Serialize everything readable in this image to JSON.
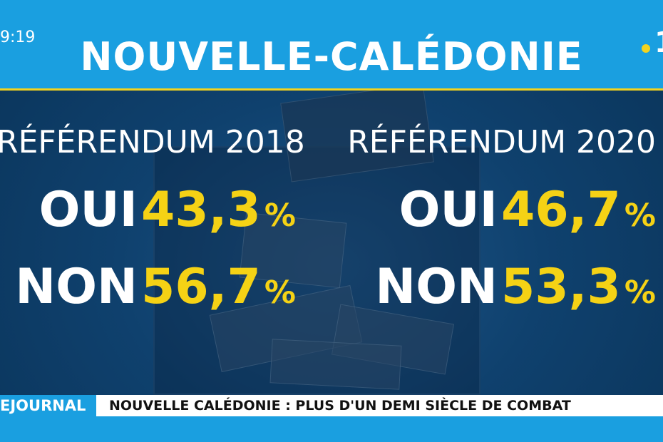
{
  "header": {
    "clock": "9:19",
    "title": "NOUVELLE-CALÉDONIE",
    "logo_text": "1"
  },
  "referendums": [
    {
      "title": "RÉFÉRENDUM 2018",
      "oui_label": "OUI",
      "oui_value": "43,3",
      "non_label": "NON",
      "non_value": "56,7",
      "unit": "%"
    },
    {
      "title": "RÉFÉRENDUM 2020",
      "oui_label": "OUI",
      "oui_value": "46,7",
      "non_label": "NON",
      "non_value": "53,3",
      "unit": "%"
    }
  ],
  "lower_third": {
    "program": "EJOURNAL",
    "headline": "NOUVELLE CALÉDONIE : PLUS D'UN DEMI SIÈCLE DE COMBAT"
  },
  "colors": {
    "brand_blue": "#1a9fe0",
    "accent_yellow": "#f5d215",
    "background_navy": "#0f3f6b"
  }
}
